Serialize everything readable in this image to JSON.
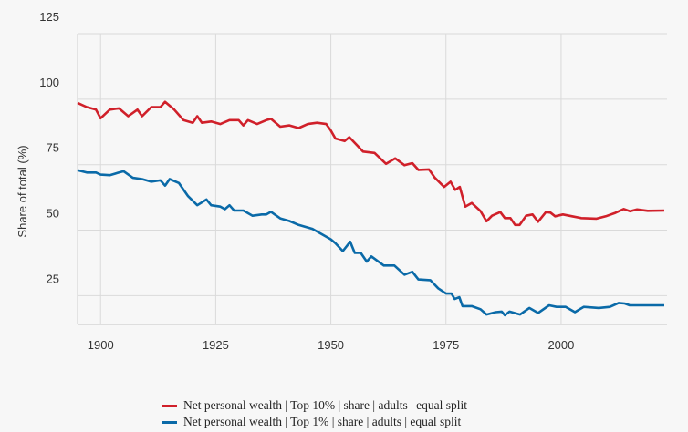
{
  "chart_data": {
    "type": "line",
    "title": "",
    "xlabel": "",
    "ylabel": "Share of total (%)",
    "xlim": [
      1895,
      2023
    ],
    "ylim": [
      14,
      125
    ],
    "xticks": [
      1900,
      1925,
      1950,
      1975,
      2000
    ],
    "yticks": [
      25,
      50,
      75,
      100,
      125
    ],
    "grid": true,
    "legend": "bottom",
    "series": [
      {
        "name": "Net personal wealth | Top 10% | share | adults | equal split",
        "color": "#d0202a",
        "x": [
          1895,
          1897,
          1899,
          1900,
          1902,
          1904,
          1906,
          1908,
          1909,
          1911,
          1913,
          1914,
          1916,
          1918,
          1920,
          1921,
          1922,
          1924,
          1926,
          1928,
          1930,
          1931,
          1932,
          1934,
          1936,
          1937,
          1939,
          1941,
          1943,
          1945,
          1947,
          1949,
          1950,
          1951,
          1953,
          1954,
          1957,
          1959.5,
          1962,
          1964,
          1966,
          1967.7,
          1969,
          1971.3,
          1972.6,
          1974.6,
          1976,
          1977,
          1978,
          1979.2,
          1980.6,
          1982.5,
          1983.8,
          1985,
          1986.8,
          1987.8,
          1989,
          1990,
          1991,
          1992.4,
          1993.8,
          1995,
          1996.7,
          1997.7,
          1998.7,
          2000.4,
          2002.4,
          2004.4,
          2007.7,
          2009.7,
          2011.6,
          2013.6,
          2015,
          2016.5,
          2018.8,
          2022.4
        ],
        "y": [
          98.6,
          97,
          96,
          92.7,
          96,
          96.5,
          93.5,
          96,
          93.5,
          97,
          97,
          99,
          96,
          92,
          91,
          93.5,
          91,
          91.5,
          90.5,
          92,
          92,
          90,
          92,
          90.5,
          92,
          92.5,
          89.5,
          90,
          89,
          90.5,
          91,
          90.5,
          88,
          85,
          84,
          85.5,
          80,
          79.5,
          75.3,
          77.4,
          74.8,
          75.6,
          73,
          73.2,
          70,
          66.5,
          68.5,
          65.4,
          66.5,
          59,
          60.4,
          57.3,
          53.4,
          55.5,
          56.9,
          54.6,
          54.6,
          52,
          52,
          55.5,
          56,
          53.2,
          56.9,
          56.7,
          55.3,
          56,
          55.3,
          54.6,
          54.4,
          55.3,
          56.5,
          58.1,
          57.2,
          57.9,
          57.4,
          57.5
        ]
      },
      {
        "name": "Net personal wealth | Top 1% | share | adults | equal split",
        "color": "#0a6aa8",
        "x": [
          1895,
          1897,
          1899,
          1900,
          1902,
          1904,
          1905,
          1907,
          1909,
          1911,
          1913,
          1914,
          1915,
          1917,
          1919,
          1921,
          1923,
          1924,
          1926,
          1927,
          1928,
          1929,
          1931,
          1933,
          1935,
          1936,
          1937,
          1939,
          1941,
          1943,
          1946,
          1948,
          1950,
          1951,
          1952.6,
          1954.2,
          1955.2,
          1956.5,
          1957.8,
          1958.8,
          1961.5,
          1963.8,
          1966,
          1967.7,
          1969,
          1971.6,
          1973.3,
          1975,
          1976.2,
          1976.9,
          1977.9,
          1978.6,
          1980.6,
          1982.5,
          1983.8,
          1985.8,
          1987.1,
          1987.8,
          1988.8,
          1991.1,
          1993.1,
          1995,
          1997.4,
          1999,
          2001,
          2003,
          2004.9,
          2008.2,
          2010.6,
          2012.5,
          2013.8,
          2014.9,
          2017.5,
          2022.4
        ],
        "y": [
          72.9,
          72,
          72,
          71.2,
          71,
          72,
          72.5,
          70,
          69.5,
          68.5,
          69,
          67,
          69.5,
          68,
          63,
          59.5,
          61.7,
          59.5,
          59,
          58,
          59.5,
          57.5,
          57.5,
          55.5,
          56,
          56,
          57,
          54.5,
          53.5,
          52,
          50.5,
          48.5,
          46.5,
          45,
          42,
          45.6,
          41.3,
          41.3,
          38,
          40,
          36.5,
          36.5,
          33,
          34.1,
          31.2,
          30.9,
          27.8,
          25.8,
          25.8,
          23.7,
          24.4,
          21,
          21,
          19.8,
          17.8,
          18.7,
          18.9,
          17.5,
          18.9,
          17.8,
          20.3,
          18.4,
          21.3,
          20.7,
          20.7,
          18.7,
          20.7,
          20.3,
          20.7,
          22.2,
          22,
          21.3,
          21.3,
          21.3
        ]
      }
    ]
  }
}
